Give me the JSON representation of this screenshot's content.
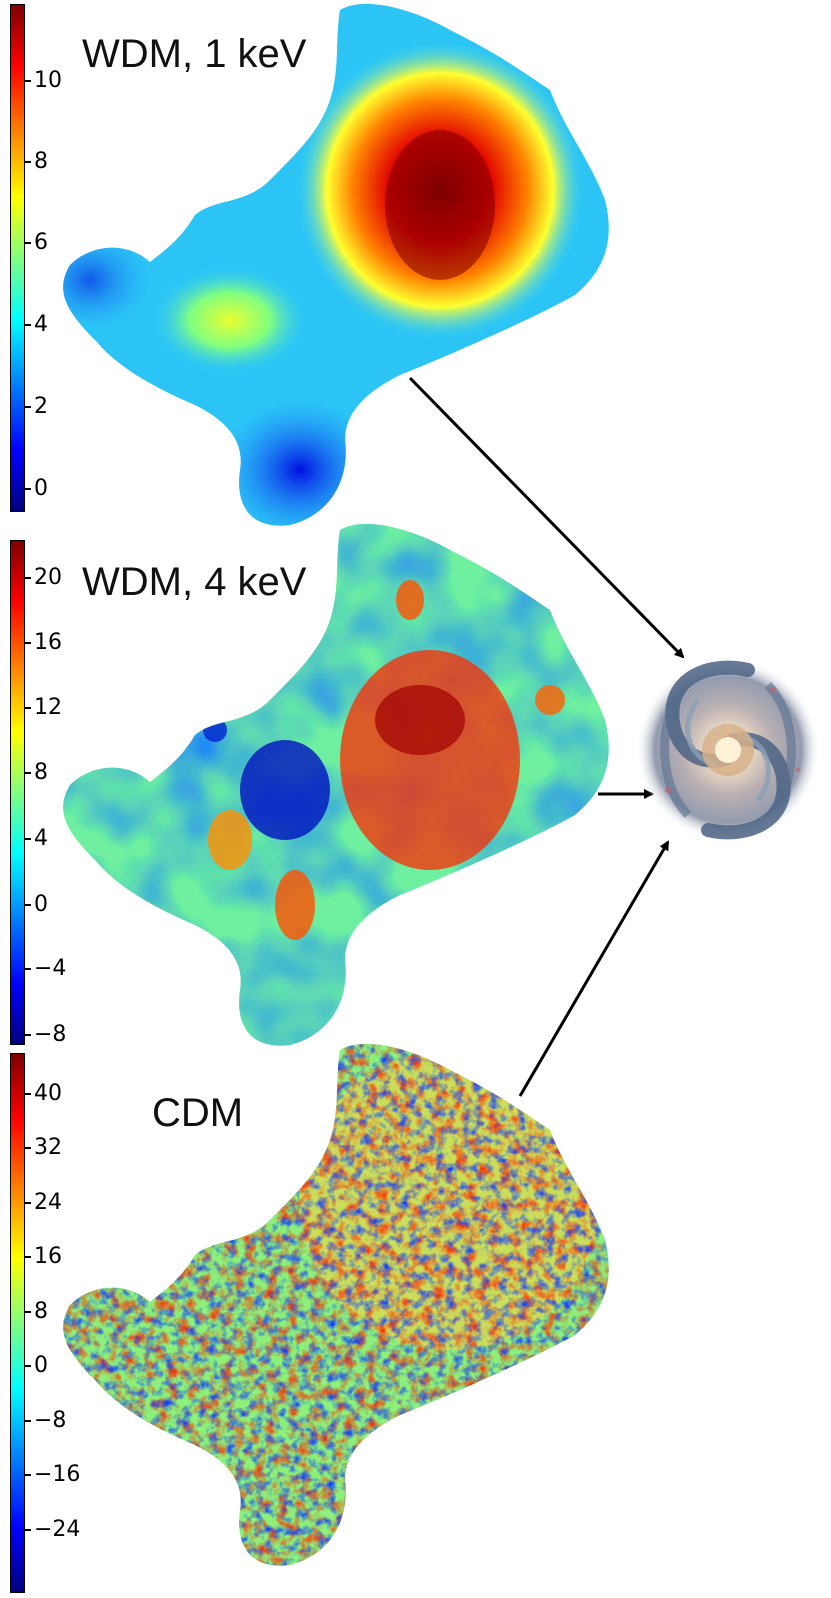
{
  "panels": [
    {
      "label": "WDM, 1 keV",
      "ticks": [
        "10",
        "8",
        "6",
        "4",
        "2",
        "0"
      ]
    },
    {
      "label": "WDM, 4 keV",
      "ticks": [
        "20",
        "16",
        "12",
        "8",
        "4",
        "0",
        "−8"
      ],
      "extra_tick": "−4"
    },
    {
      "label": "CDM",
      "ticks": [
        "40",
        "32",
        "24",
        "16",
        "8",
        "0",
        "−8",
        "−16",
        "−24"
      ]
    }
  ],
  "colormap": "jet",
  "galaxy": "spiral-galaxy-icon"
}
